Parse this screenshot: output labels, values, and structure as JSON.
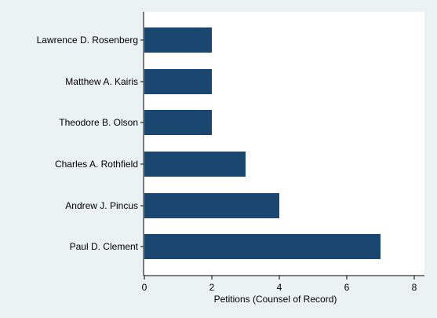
{
  "chart_data": {
    "type": "bar",
    "orientation": "horizontal",
    "categories": [
      "Lawrence D. Rosenberg",
      "Matthew A. Kairis",
      "Theodore B. Olson",
      "Charles A. Rothfield",
      "Andrew J. Pincus",
      "Paul D. Clement"
    ],
    "values": [
      2,
      2,
      2,
      3,
      4,
      7
    ],
    "title": "",
    "xlabel": "Petitions (Counsel of Record)",
    "ylabel": "",
    "xlim": [
      0,
      8.3
    ],
    "xticks": [
      "0",
      "2",
      "4",
      "6",
      "8"
    ],
    "grid": false,
    "legend": "none",
    "bar_color": "#1a476f",
    "plot_background": "#ffffff",
    "page_background": "#eaf2f3"
  }
}
